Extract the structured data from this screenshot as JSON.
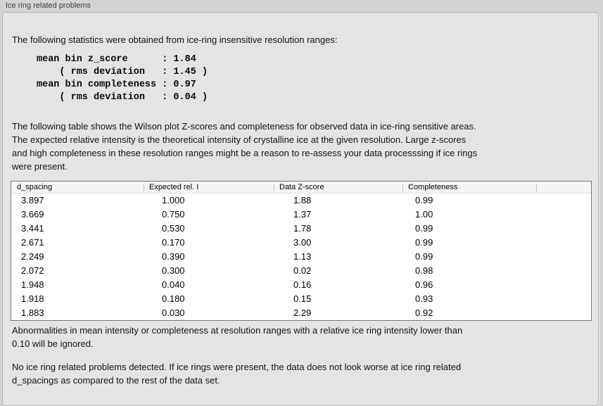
{
  "panel": {
    "title": "Ice ring related problems"
  },
  "intro": "The following statistics were obtained from ice-ring insensitive resolution ranges:",
  "stats_block": "mean bin z_score      : 1.84\n    ( rms deviation   : 1.45 )\nmean bin completeness : 0.97\n    ( rms deviation   : 0.04 )",
  "stats": {
    "mean_bin_z_score": "1.84",
    "z_score_rms_deviation": "1.45",
    "mean_bin_completeness": "0.97",
    "completeness_rms_deviation": "0.04"
  },
  "table_intro": "The following table shows the Wilson plot Z-scores and completeness for observed data in ice-ring sensitive areas.\nThe expected relative intensity is the theoretical intensity of crystalline ice at the given resolution. Large z-scores\nand high completeness in these resolution ranges might be a reason to re-assess your data processsing if ice rings\nwere present.",
  "table": {
    "columns": [
      "d_spacing",
      "Expected rel. I",
      "Data Z-score",
      "Completeness",
      ""
    ],
    "rows": [
      [
        "3.897",
        "1.000",
        "1.88",
        "0.99"
      ],
      [
        "3.669",
        "0.750",
        "1.37",
        "1.00"
      ],
      [
        "3.441",
        "0.530",
        "1.78",
        "0.99"
      ],
      [
        "2.671",
        "0.170",
        "3.00",
        "0.99"
      ],
      [
        "2.249",
        "0.390",
        "1.13",
        "0.99"
      ],
      [
        "2.072",
        "0.300",
        "0.02",
        "0.98"
      ],
      [
        "1.948",
        "0.040",
        "0.16",
        "0.96"
      ],
      [
        "1.918",
        "0.180",
        "0.15",
        "0.93"
      ],
      [
        "1.883",
        "0.030",
        "2.29",
        "0.92"
      ]
    ]
  },
  "note_ignore": "Abnormalities in mean intensity or completeness at resolution ranges with a relative ice ring intensity lower than\n0.10 will be ignored.",
  "conclusion": "No ice ring related problems detected. If ice rings were present, the data does not look worse at ice ring related\nd_spacings as compared to the rest of the data set.",
  "colors": {
    "window_background": "#d4d4d4",
    "box_background": "#e4e4e4",
    "box_border": "#b2b2b2",
    "table_border": "#7a7a7a",
    "table_header_background": "#f5f5f5",
    "text": "#141414"
  }
}
